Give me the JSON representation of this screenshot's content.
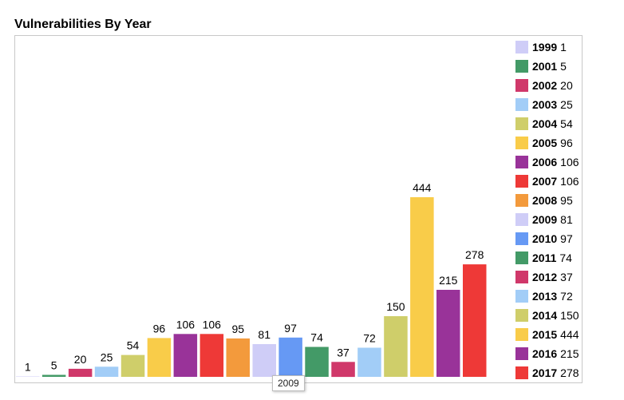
{
  "title": "Vulnerabilities By Year",
  "tooltip": "2009",
  "chart_data": {
    "type": "bar",
    "categories": [
      "1999",
      "2001",
      "2002",
      "2003",
      "2004",
      "2005",
      "2006",
      "2007",
      "2008",
      "2009",
      "2010",
      "2011",
      "2012",
      "2013",
      "2014",
      "2015",
      "2016",
      "2017"
    ],
    "values": [
      1,
      5,
      20,
      25,
      54,
      96,
      106,
      106,
      95,
      81,
      97,
      74,
      37,
      72,
      150,
      444,
      215,
      278
    ],
    "colors": [
      "#cfcdf7",
      "#439a67",
      "#d0386a",
      "#a2cdf7",
      "#cfce6a",
      "#f9cc49",
      "#993399",
      "#ee3937",
      "#f39a3c",
      "#cfcdf7",
      "#6699f4",
      "#439a67",
      "#d0386a",
      "#a2cdf7",
      "#cfce6a",
      "#f9cc49",
      "#993399",
      "#ee3937"
    ],
    "title": "Vulnerabilities By Year",
    "xlabel": "",
    "ylabel": "",
    "ylim": [
      0,
      444
    ],
    "grid": false,
    "legend": "right"
  }
}
